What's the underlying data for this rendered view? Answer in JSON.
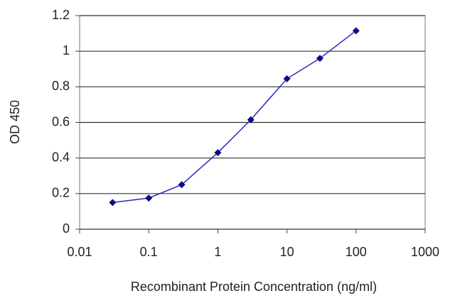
{
  "chart_data": {
    "type": "line",
    "x_label": "Recombinant Protein Concentration (ng/ml)",
    "y_label": "OD 450",
    "x": [
      0.03,
      0.1,
      0.3,
      1,
      3,
      10,
      30,
      100
    ],
    "values": [
      0.15,
      0.175,
      0.25,
      0.43,
      0.615,
      0.845,
      0.96,
      1.115
    ],
    "color": "#2b2bb8",
    "marker_color": "#0a0a8a",
    "xlog": true,
    "xlim": [
      0.01,
      1000
    ],
    "xticks": [
      0.01,
      0.1,
      1,
      10,
      100,
      1000
    ],
    "ylim": [
      0,
      1.2
    ],
    "yticks": [
      0,
      0.2,
      0.4,
      0.6,
      0.8,
      1,
      1.2
    ],
    "grid": true
  }
}
